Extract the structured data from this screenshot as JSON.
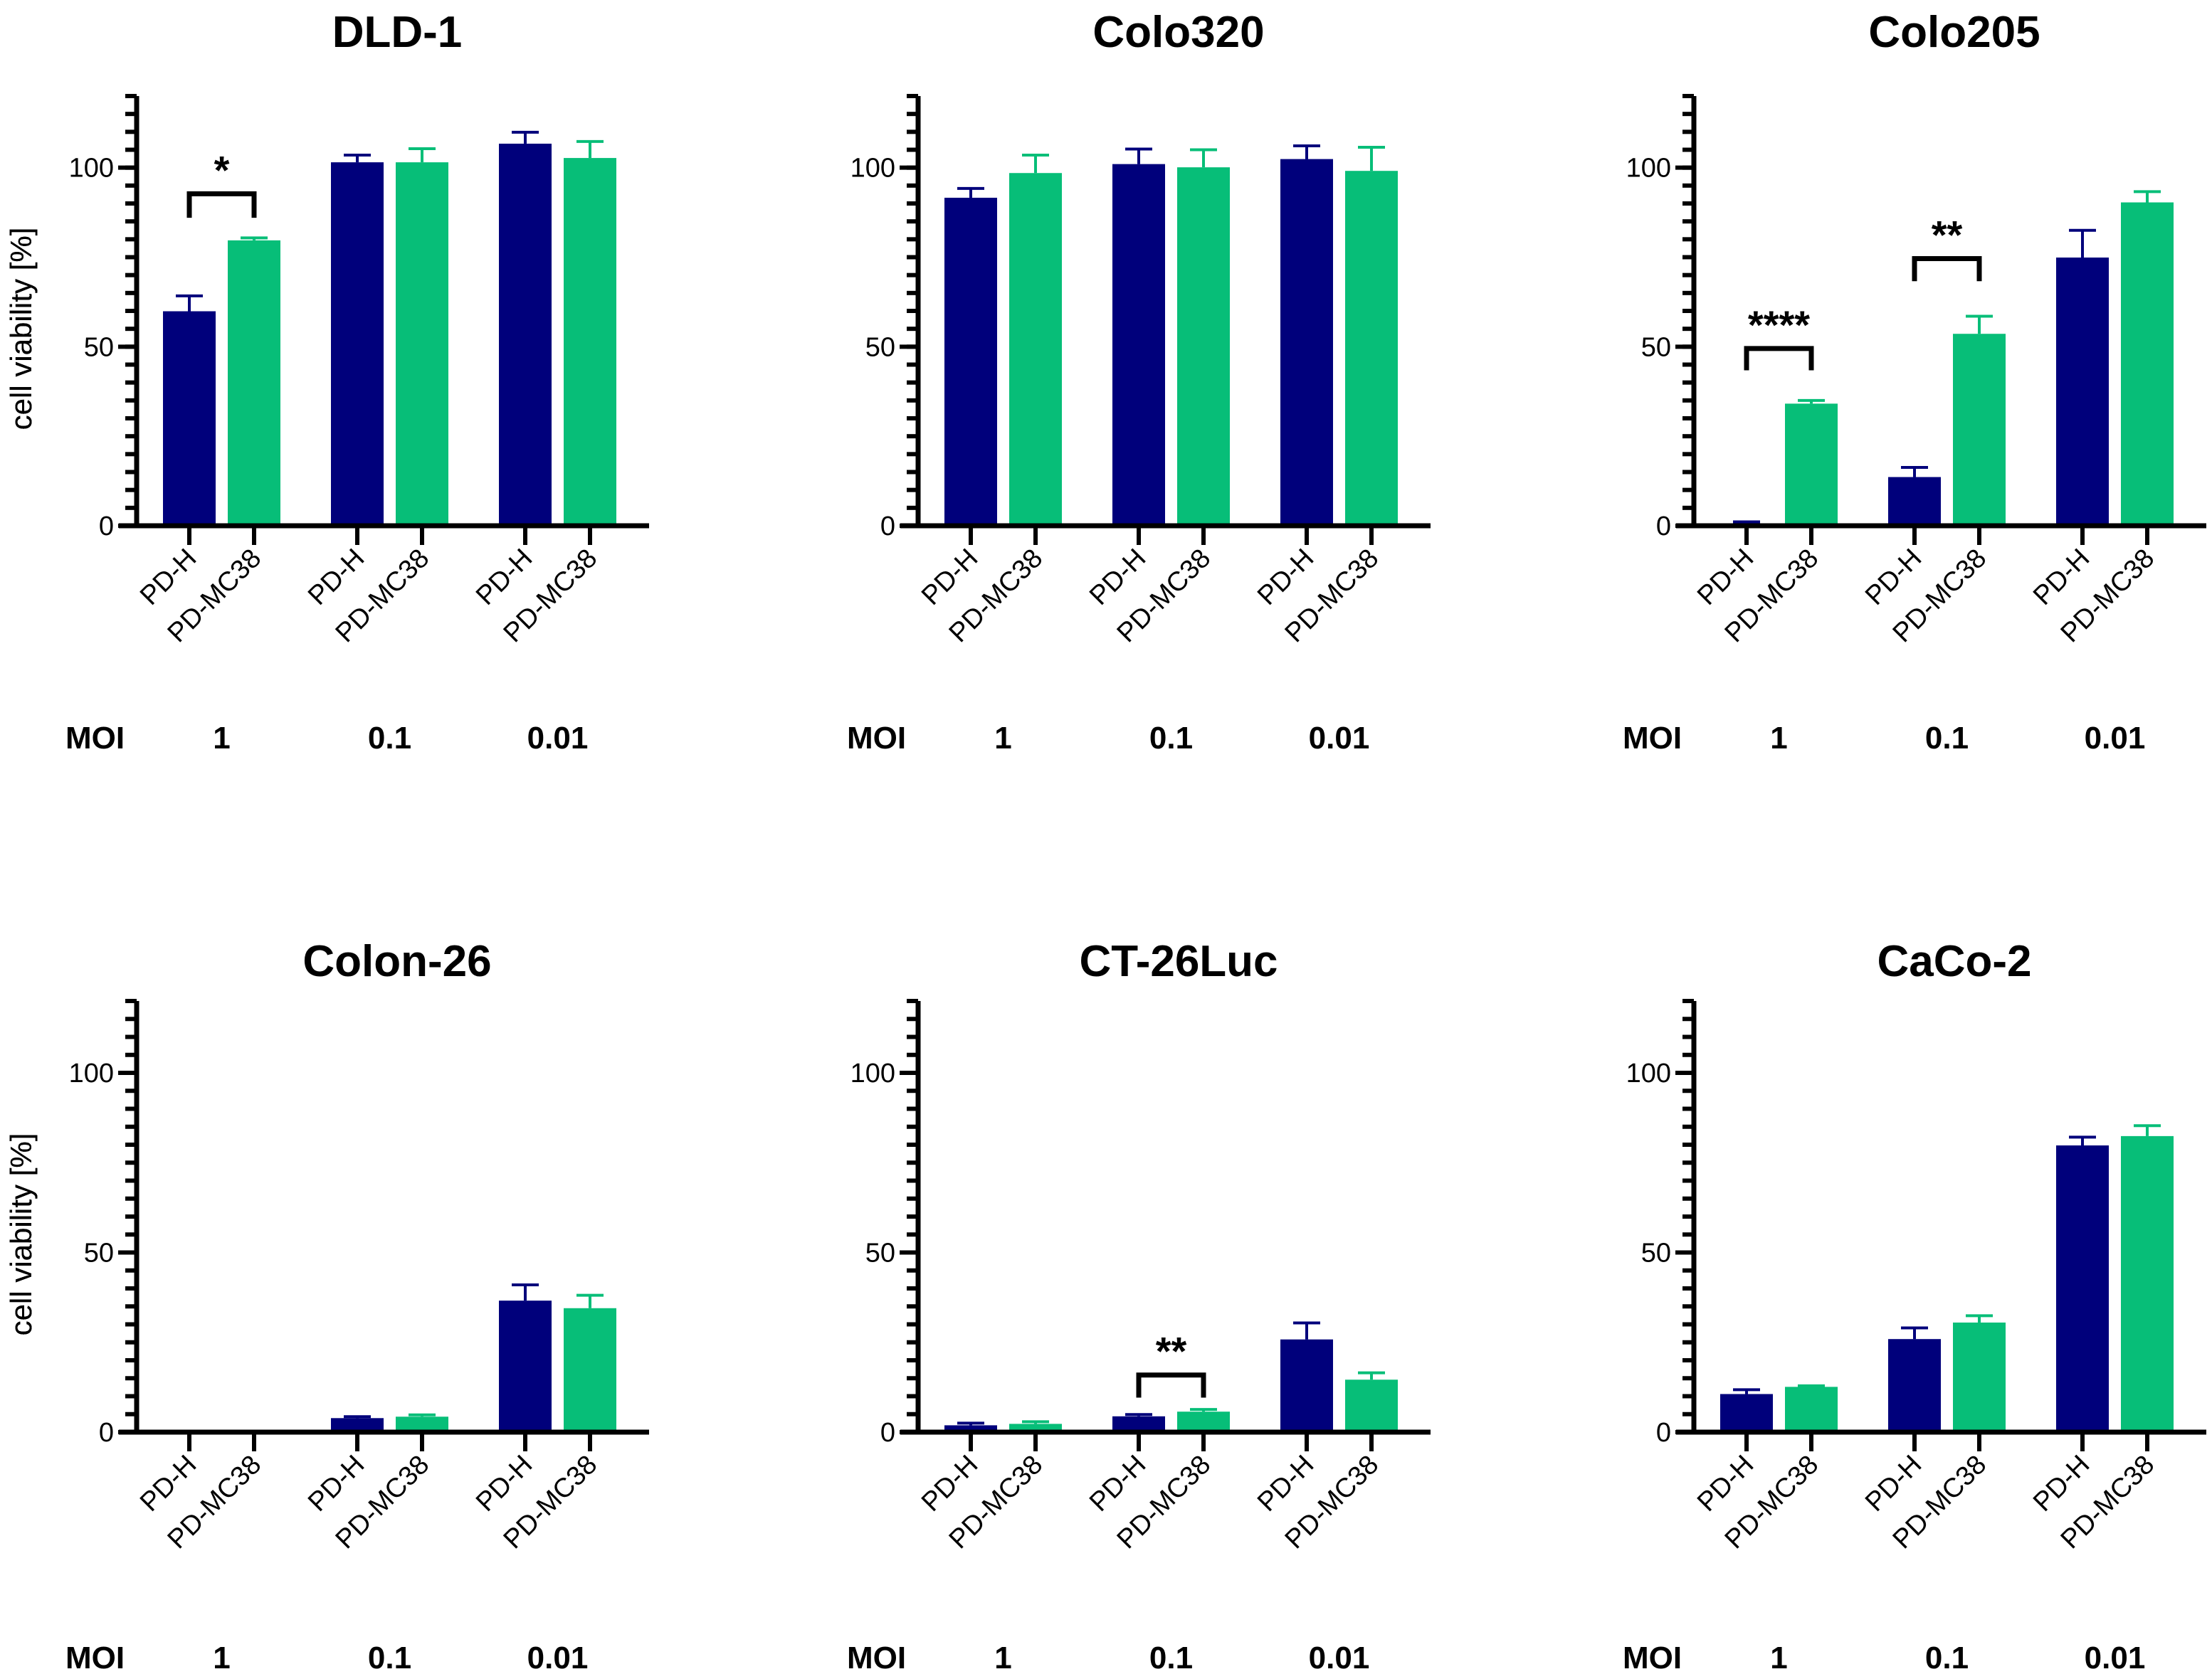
{
  "figure": {
    "colors": {
      "PD-H": "#00007B",
      "PD-MC38": "#07BE78",
      "axis": "#000000"
    },
    "moi_label": "MOI"
  },
  "chart_data": [
    {
      "type": "bar",
      "title": "DLD-1",
      "ylabel": "cell viability [%]",
      "ylim": [
        0,
        120
      ],
      "yticks": [
        0,
        50,
        100
      ],
      "minor_tick_step": 5,
      "groups": [
        "1",
        "0.1",
        "0.01"
      ],
      "group_axis_label": "MOI",
      "categories": [
        "PD-H",
        "PD-MC38"
      ],
      "series": [
        {
          "name": "PD-H",
          "values": [
            59.9,
            101.5,
            106.7
          ],
          "errors": [
            4.3,
            2.0,
            3.2
          ]
        },
        {
          "name": "PD-MC38",
          "values": [
            79.7,
            101.5,
            102.7
          ],
          "errors": [
            0.7,
            3.8,
            4.6
          ]
        }
      ],
      "significance": [
        {
          "group": 0,
          "label": "*",
          "bracket_y": 92.7,
          "leg_y": 86
        }
      ]
    },
    {
      "type": "bar",
      "title": "Colo320",
      "ylabel": "cell viability [%]",
      "ylim": [
        0,
        120
      ],
      "yticks": [
        0,
        50,
        100
      ],
      "minor_tick_step": 5,
      "groups": [
        "1",
        "0.1",
        "0.01"
      ],
      "group_axis_label": "MOI",
      "categories": [
        "PD-H",
        "PD-MC38"
      ],
      "series": [
        {
          "name": "PD-H",
          "values": [
            91.6,
            101.0,
            102.4
          ],
          "errors": [
            2.6,
            4.2,
            3.7
          ]
        },
        {
          "name": "PD-MC38",
          "values": [
            98.5,
            100.1,
            99.1
          ],
          "errors": [
            5.0,
            4.9,
            6.6
          ]
        }
      ],
      "significance": []
    },
    {
      "type": "bar",
      "title": "Colo205",
      "ylabel": "cell viability [%]",
      "ylim": [
        0,
        120
      ],
      "yticks": [
        0,
        50,
        100
      ],
      "minor_tick_step": 5,
      "groups": [
        "1",
        "0.1",
        "0.01"
      ],
      "group_axis_label": "MOI",
      "categories": [
        "PD-H",
        "PD-MC38"
      ],
      "series": [
        {
          "name": "PD-H",
          "values": [
            0.4,
            13.6,
            74.9
          ],
          "errors": [
            0.7,
            2.7,
            7.6
          ]
        },
        {
          "name": "PD-MC38",
          "values": [
            34.1,
            53.6,
            90.3
          ],
          "errors": [
            0.9,
            4.9,
            3.0
          ]
        }
      ],
      "significance": [
        {
          "group": 0,
          "label": "****",
          "bracket_y": 49.5,
          "leg_y": 43.4
        },
        {
          "group": 1,
          "label": "**",
          "bracket_y": 74.6,
          "leg_y": 68.3
        }
      ]
    },
    {
      "type": "bar",
      "title": "Colon-26",
      "ylabel": "cell viability [%]",
      "ylim": [
        0,
        120
      ],
      "yticks": [
        0,
        50,
        100
      ],
      "minor_tick_step": 5,
      "groups": [
        "1",
        "0.1",
        "0.01"
      ],
      "group_axis_label": "MOI",
      "categories": [
        "PD-H",
        "PD-MC38"
      ],
      "series": [
        {
          "name": "PD-H",
          "values": [
            0.0,
            3.9,
            36.6
          ],
          "errors": [
            0.0,
            0.4,
            4.4
          ]
        },
        {
          "name": "PD-MC38",
          "values": [
            0.2,
            4.3,
            34.5
          ],
          "errors": [
            0.0,
            0.5,
            3.6
          ]
        }
      ],
      "significance": []
    },
    {
      "type": "bar",
      "title": "CT-26Luc",
      "ylabel": "cell viability [%]",
      "ylim": [
        0,
        120
      ],
      "yticks": [
        0,
        50,
        100
      ],
      "minor_tick_step": 5,
      "groups": [
        "1",
        "0.1",
        "0.01"
      ],
      "group_axis_label": "MOI",
      "categories": [
        "PD-H",
        "PD-MC38"
      ],
      "series": [
        {
          "name": "PD-H",
          "values": [
            1.9,
            4.4,
            25.8
          ],
          "errors": [
            0.6,
            0.5,
            4.6
          ]
        },
        {
          "name": "PD-MC38",
          "values": [
            2.3,
            5.7,
            14.6
          ],
          "errors": [
            0.6,
            0.6,
            1.9
          ]
        }
      ],
      "significance": [
        {
          "group": 1,
          "label": "**",
          "bracket_y": 15.9,
          "leg_y": 9.6
        }
      ]
    },
    {
      "type": "bar",
      "title": "CaCo-2",
      "ylabel": "cell viability [%]",
      "ylim": [
        0,
        120
      ],
      "yticks": [
        0,
        50,
        100
      ],
      "minor_tick_step": 5,
      "groups": [
        "1",
        "0.1",
        "0.01"
      ],
      "group_axis_label": "MOI",
      "categories": [
        "PD-H",
        "PD-MC38"
      ],
      "series": [
        {
          "name": "PD-H",
          "values": [
            10.6,
            25.9,
            79.8
          ],
          "errors": [
            1.2,
            3.1,
            2.3
          ]
        },
        {
          "name": "PD-MC38",
          "values": [
            12.6,
            30.5,
            82.4
          ],
          "errors": [
            0.3,
            1.9,
            2.9
          ]
        }
      ],
      "significance": []
    }
  ]
}
